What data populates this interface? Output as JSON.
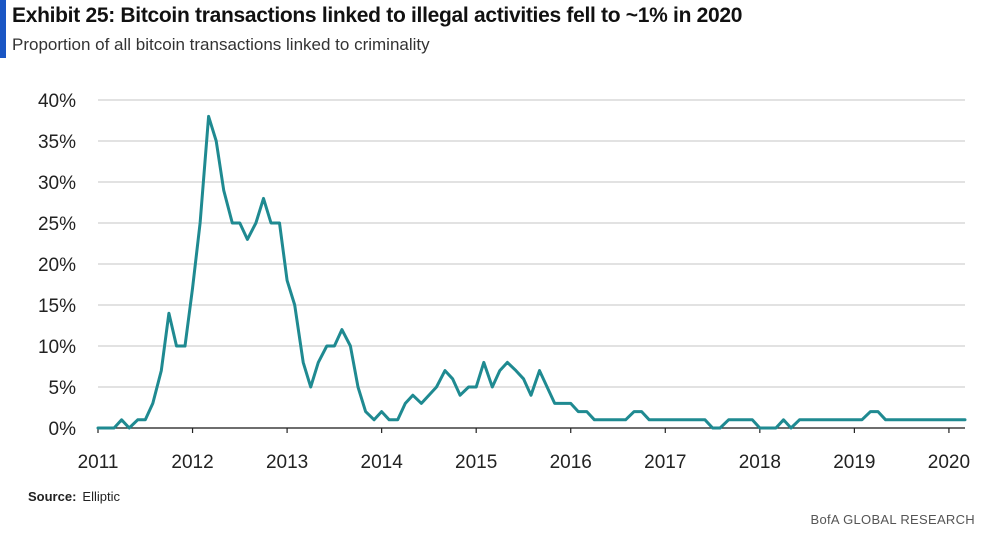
{
  "header": {
    "title": "Exhibit 25: Bitcoin transactions linked to illegal activities fell to ~1% in 2020",
    "subtitle": "Proportion of all bitcoin transactions linked to criminality"
  },
  "footer": {
    "source_label": "Source:",
    "source_value": "Elliptic",
    "brand": "BofA GLOBAL RESEARCH"
  },
  "colors": {
    "accent": "#1a56c4",
    "line": "#1f8a91",
    "grid": "#d9d9d9"
  },
  "chart_data": {
    "type": "line",
    "title": "",
    "xlabel": "",
    "ylabel": "",
    "xlim": [
      2011.0,
      2020.17
    ],
    "ylim": [
      0,
      40
    ],
    "x_ticks": [
      "2011",
      "2012",
      "2013",
      "2014",
      "2015",
      "2016",
      "2017",
      "2018",
      "2019",
      "2020"
    ],
    "y_ticks": [
      {
        "value": 0,
        "label": "0%"
      },
      {
        "value": 5,
        "label": "5%"
      },
      {
        "value": 10,
        "label": "10%"
      },
      {
        "value": 15,
        "label": "15%"
      },
      {
        "value": 20,
        "label": "20%"
      },
      {
        "value": 25,
        "label": "25%"
      },
      {
        "value": 30,
        "label": "30%"
      },
      {
        "value": 35,
        "label": "35%"
      },
      {
        "value": 40,
        "label": "40%"
      }
    ],
    "grid": "horizontal",
    "legend": "none",
    "series": [
      {
        "x": [
          2011.0,
          2011.08,
          2011.17,
          2011.25,
          2011.33,
          2011.42,
          2011.5,
          2011.58,
          2011.67,
          2011.75,
          2011.83,
          2011.92,
          2012.0,
          2012.08,
          2012.17,
          2012.25,
          2012.33,
          2012.42,
          2012.5,
          2012.58,
          2012.67,
          2012.75,
          2012.83,
          2012.92,
          2013.0,
          2013.08,
          2013.17,
          2013.25,
          2013.33,
          2013.42,
          2013.5,
          2013.58,
          2013.67,
          2013.75,
          2013.83,
          2013.92,
          2014.0,
          2014.08,
          2014.17,
          2014.25,
          2014.33,
          2014.42,
          2014.5,
          2014.58,
          2014.67,
          2014.75,
          2014.83,
          2014.92,
          2015.0,
          2015.08,
          2015.17,
          2015.25,
          2015.33,
          2015.42,
          2015.5,
          2015.58,
          2015.67,
          2015.75,
          2015.83,
          2015.92,
          2016.0,
          2016.08,
          2016.17,
          2016.25,
          2016.33,
          2016.42,
          2016.5,
          2016.58,
          2016.67,
          2016.75,
          2016.83,
          2016.92,
          2017.0,
          2017.08,
          2017.17,
          2017.25,
          2017.33,
          2017.42,
          2017.5,
          2017.58,
          2017.67,
          2017.75,
          2017.83,
          2017.92,
          2018.0,
          2018.08,
          2018.17,
          2018.25,
          2018.33,
          2018.42,
          2018.5,
          2018.58,
          2018.67,
          2018.75,
          2018.83,
          2018.92,
          2019.0,
          2019.08,
          2019.17,
          2019.25,
          2019.33,
          2019.42,
          2019.5,
          2019.58,
          2019.67,
          2019.75,
          2019.83,
          2019.92,
          2020.0,
          2020.08,
          2020.17
        ],
        "values": [
          0,
          0,
          0,
          1,
          0,
          1,
          1,
          3,
          7,
          14,
          10,
          10,
          17,
          25,
          38,
          35,
          29,
          25,
          25,
          23,
          25,
          28,
          25,
          25,
          18,
          15,
          8,
          5,
          8,
          10,
          10,
          12,
          10,
          5,
          2,
          1,
          2,
          1,
          1,
          3,
          4,
          3,
          4,
          5,
          7,
          6,
          4,
          5,
          5,
          8,
          5,
          7,
          8,
          7,
          6,
          4,
          7,
          5,
          3,
          3,
          3,
          2,
          2,
          1,
          1,
          1,
          1,
          1,
          2,
          2,
          1,
          1,
          1,
          1,
          1,
          1,
          1,
          1,
          0,
          0,
          1,
          1,
          1,
          1,
          0,
          0,
          0,
          1,
          0,
          1,
          1,
          1,
          1,
          1,
          1,
          1,
          1,
          1,
          2,
          2,
          1,
          1,
          1,
          1,
          1,
          1,
          1,
          1,
          1,
          1,
          1
        ]
      }
    ]
  }
}
